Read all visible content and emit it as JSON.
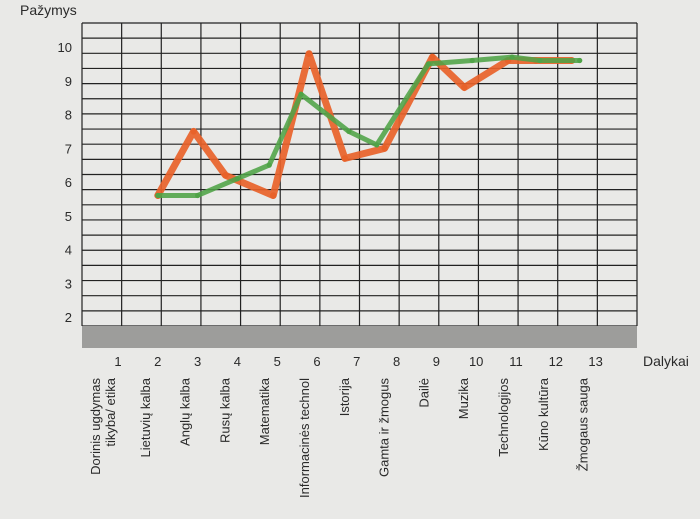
{
  "chart_data": {
    "type": "line",
    "ylabel": "Pažymys",
    "xlabel": "Dalykai",
    "y_ticks": [
      2,
      3,
      4,
      5,
      6,
      7,
      8,
      9,
      10
    ],
    "ylim": [
      1.3,
      10.8
    ],
    "x_ticks": [
      "1",
      "2",
      "3",
      "4",
      "5",
      "6",
      "7",
      "8",
      "9",
      "10",
      "11",
      "12",
      "13"
    ],
    "categories": [
      "Dorinis ugdymas tikyba/ etika",
      "Lietuvių kalba",
      "Anglų kalba",
      "Rusų kalba",
      "Matematika",
      "Informacinės technol",
      "Istorija",
      "Gamta ir žmogus",
      "Dailė",
      "Muzika",
      "Technologijos",
      "Kūno kultūra",
      "Žmogaus sauga"
    ],
    "grid": true,
    "series": [
      {
        "color": "#e8622a",
        "points": [
          [
            2,
            5.6
          ],
          [
            2.9,
            7.5
          ],
          [
            3.7,
            6.2
          ],
          [
            4.9,
            5.6
          ],
          [
            5.8,
            9.8
          ],
          [
            6.7,
            6.7
          ],
          [
            7.7,
            7.0
          ],
          [
            8.9,
            9.7
          ],
          [
            9.7,
            8.8
          ],
          [
            10.8,
            9.6
          ],
          [
            11.5,
            9.6
          ],
          [
            12.4,
            9.6
          ]
        ]
      },
      {
        "color": "#4fa347",
        "points": [
          [
            2,
            5.6
          ],
          [
            3,
            5.6
          ],
          [
            4.0,
            6.1
          ],
          [
            4.8,
            6.5
          ],
          [
            5.6,
            8.6
          ],
          [
            6.8,
            7.5
          ],
          [
            7.5,
            7.1
          ],
          [
            8.8,
            9.5
          ],
          [
            9.9,
            9.6
          ],
          [
            10.9,
            9.7
          ],
          [
            11.6,
            9.6
          ],
          [
            12.6,
            9.6
          ]
        ]
      }
    ]
  }
}
